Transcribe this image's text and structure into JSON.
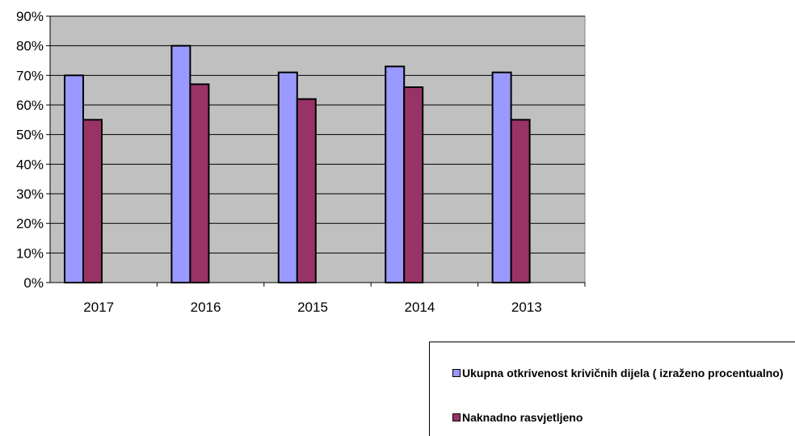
{
  "chart_data": {
    "type": "bar",
    "title": "",
    "xlabel": "",
    "ylabel": "",
    "categories": [
      "2017",
      "2016",
      "2015",
      "2014",
      "2013"
    ],
    "series": [
      {
        "name": "Ukupna otkrivenost  krivičnih dijela ( izraženo procentualno)",
        "values": [
          70,
          80,
          71,
          73,
          71
        ],
        "color": "#9999ff"
      },
      {
        "name": "Naknadno rasvjetljeno",
        "values": [
          55,
          67,
          62,
          66,
          55
        ],
        "color": "#993366"
      }
    ],
    "ylim": [
      0,
      90
    ],
    "yticks": [
      "0%",
      "10%",
      "20%",
      "30%",
      "40%",
      "50%",
      "60%",
      "70%",
      "80%",
      "90%"
    ],
    "grid": true,
    "plot_background": "#c0c0c0",
    "legend_position": "bottom-right"
  }
}
